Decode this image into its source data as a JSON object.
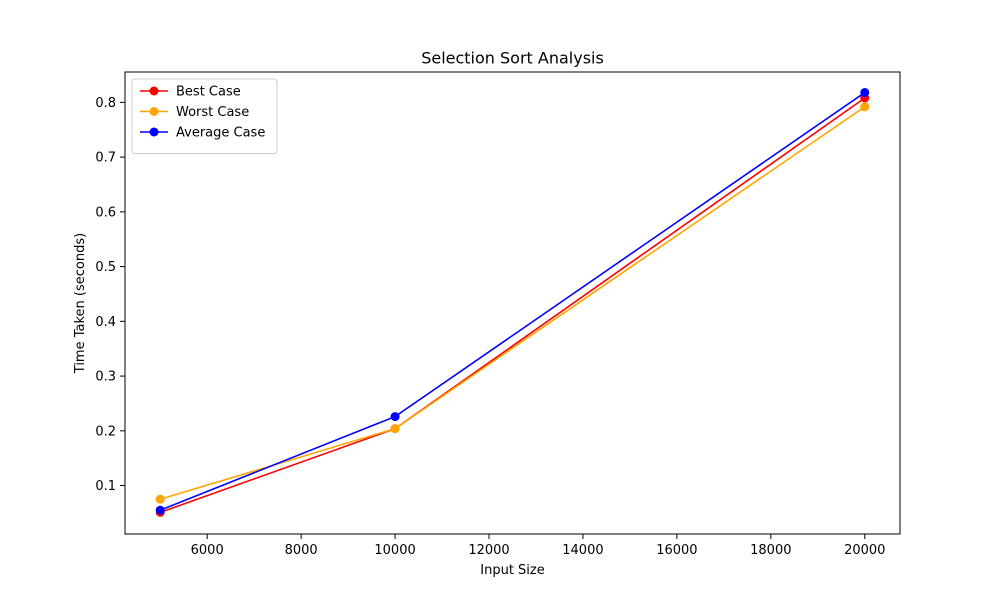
{
  "chart_data": {
    "type": "line",
    "title": "Selection Sort Analysis",
    "xlabel": "Input Size",
    "ylabel": "Time Taken (seconds)",
    "x": [
      5000,
      10000,
      20000
    ],
    "xlim": [
      4250,
      20750
    ],
    "ylim": [
      0.0115,
      0.8555
    ],
    "xticks": [
      6000,
      8000,
      10000,
      12000,
      14000,
      16000,
      18000,
      20000
    ],
    "yticks": [
      0.1,
      0.2,
      0.3,
      0.4,
      0.5,
      0.6,
      0.7,
      0.8
    ],
    "xtick_labels": [
      "6000",
      "8000",
      "10000",
      "12000",
      "14000",
      "16000",
      "18000",
      "20000"
    ],
    "ytick_labels": [
      "0.1",
      "0.2",
      "0.3",
      "0.4",
      "0.5",
      "0.6",
      "0.7",
      "0.8"
    ],
    "grid": false,
    "legend_position": "top-left",
    "series": [
      {
        "name": "Best Case",
        "color": "#ff0000",
        "marker": "circle",
        "values": [
          0.051,
          0.204,
          0.808
        ]
      },
      {
        "name": "Worst Case",
        "color": "#ffa500",
        "marker": "circle",
        "values": [
          0.075,
          0.204,
          0.792
        ]
      },
      {
        "name": "Average Case",
        "color": "#0000ff",
        "marker": "circle",
        "values": [
          0.055,
          0.226,
          0.818
        ]
      }
    ]
  }
}
